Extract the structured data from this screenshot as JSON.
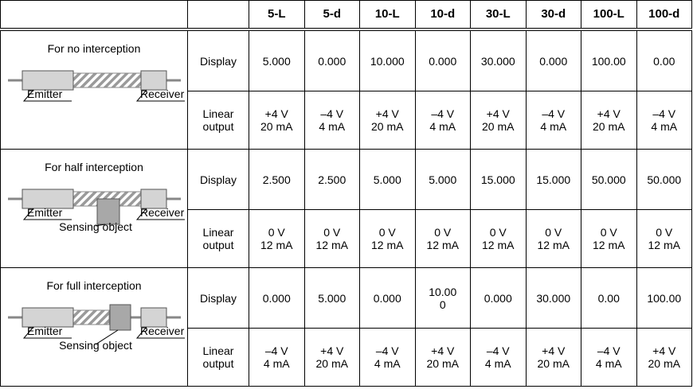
{
  "table": {
    "columns": [
      "5-L",
      "5-d",
      "10-L",
      "10-d",
      "30-L",
      "30-d",
      "100-L",
      "100-d"
    ],
    "sections": [
      {
        "title": "For no interception",
        "labels": [
          "Emitter",
          "Receiver"
        ],
        "rows": [
          {
            "label": [
              "Display"
            ],
            "cells": [
              [
                "5.000"
              ],
              [
                "0.000"
              ],
              [
                "10.000"
              ],
              [
                "0.000"
              ],
              [
                "30.000"
              ],
              [
                "0.000"
              ],
              [
                "100.00"
              ],
              [
                "0.00"
              ]
            ]
          },
          {
            "label": [
              "Linear",
              "output"
            ],
            "cells": [
              [
                "+4 V",
                "20 mA"
              ],
              [
                "–4 V",
                "4 mA"
              ],
              [
                "+4 V",
                "20 mA"
              ],
              [
                "–4 V",
                "4 mA"
              ],
              [
                "+4 V",
                "20 mA"
              ],
              [
                "–4 V",
                "4 mA"
              ],
              [
                "+4 V",
                "20 mA"
              ],
              [
                "–4 V",
                "4 mA"
              ]
            ]
          }
        ]
      },
      {
        "title": "For half interception",
        "labels": [
          "Emitter",
          "Receiver",
          "Sensing object"
        ],
        "rows": [
          {
            "label": [
              "Display"
            ],
            "cells": [
              [
                "2.500"
              ],
              [
                "2.500"
              ],
              [
                "5.000"
              ],
              [
                "5.000"
              ],
              [
                "15.000"
              ],
              [
                "15.000"
              ],
              [
                "50.000"
              ],
              [
                "50.000"
              ]
            ]
          },
          {
            "label": [
              "Linear",
              "output"
            ],
            "cells": [
              [
                "0 V",
                "12 mA"
              ],
              [
                "0 V",
                "12 mA"
              ],
              [
                "0 V",
                "12 mA"
              ],
              [
                "0 V",
                "12 mA"
              ],
              [
                "0 V",
                "12 mA"
              ],
              [
                "0 V",
                "12 mA"
              ],
              [
                "0 V",
                "12 mA"
              ],
              [
                "0 V",
                "12 mA"
              ]
            ]
          }
        ]
      },
      {
        "title": "For full interception",
        "labels": [
          "Emitter",
          "Receiver",
          "Sensing object"
        ],
        "rows": [
          {
            "label": [
              "Display"
            ],
            "cells": [
              [
                "0.000"
              ],
              [
                "5.000"
              ],
              [
                "0.000"
              ],
              [
                "10.00",
                "0"
              ],
              [
                "0.000"
              ],
              [
                "30.000"
              ],
              [
                "0.00"
              ],
              [
                "100.00"
              ]
            ]
          },
          {
            "label": [
              "Linear",
              "output"
            ],
            "cells": [
              [
                "–4 V",
                "4 mA"
              ],
              [
                "+4 V",
                "20 mA"
              ],
              [
                "–4 V",
                "4 mA"
              ],
              [
                "+4 V",
                "20 mA"
              ],
              [
                "–4 V",
                "4 mA"
              ],
              [
                "+4 V",
                "20 mA"
              ],
              [
                "–4 V",
                "4 mA"
              ],
              [
                "+4 V",
                "20 mA"
              ]
            ]
          }
        ]
      }
    ]
  }
}
